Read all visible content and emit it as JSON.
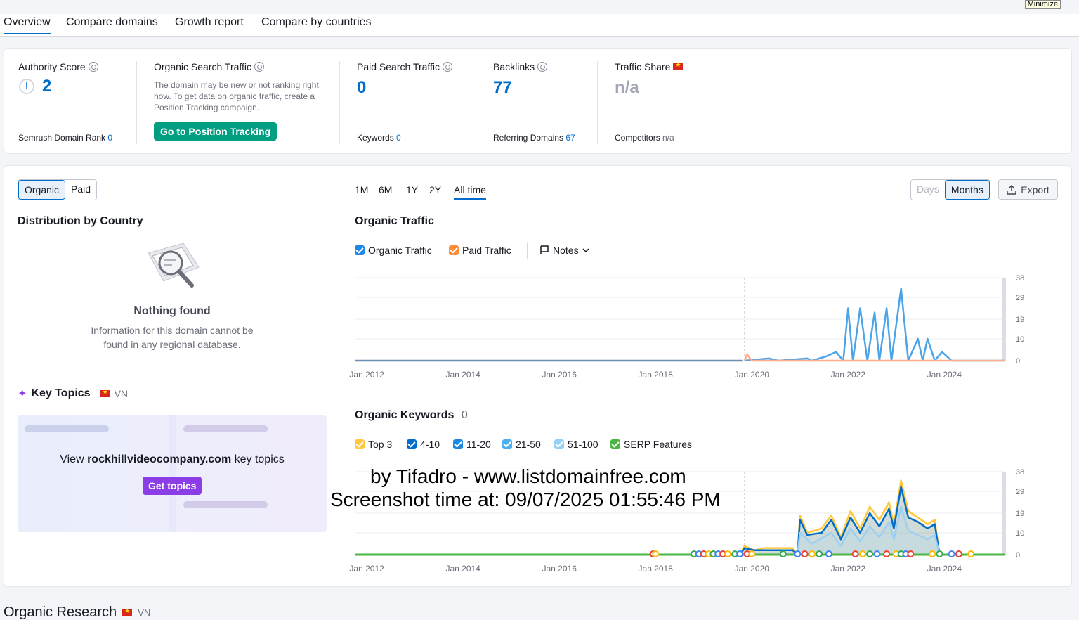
{
  "window": {
    "minimize_label": "Minimize"
  },
  "tabs": [
    {
      "label": "Overview",
      "active": true
    },
    {
      "label": "Compare domains"
    },
    {
      "label": "Growth report"
    },
    {
      "label": "Compare by countries"
    }
  ],
  "metrics": {
    "authority": {
      "title": "Authority Score",
      "value": "2",
      "sub_label": "Semrush Domain Rank",
      "sub_value": "0"
    },
    "organic": {
      "title": "Organic Search Traffic",
      "note": "The domain may be new or not ranking right now. To get data on organic traffic, create a Position Tracking campaign.",
      "button": "Go to Position Tracking"
    },
    "paid": {
      "title": "Paid Search Traffic",
      "value": "0",
      "sub_label": "Keywords",
      "sub_value": "0"
    },
    "backlinks": {
      "title": "Backlinks",
      "value": "77",
      "sub_label": "Referring Domains",
      "sub_value": "67"
    },
    "share": {
      "title": "Traffic Share",
      "value": "n/a",
      "sub_label": "Competitors",
      "sub_value": "n/a"
    }
  },
  "left_panel": {
    "toggle": [
      "Organic",
      "Paid"
    ],
    "distribution_title": "Distribution by Country",
    "nothing_found": "Nothing found",
    "nothing_text_1": "Information for this domain cannot be",
    "nothing_text_2": "found in any regional database.",
    "key_topics_title": "Key Topics",
    "key_topics_country": "VN",
    "view_prefix": "View ",
    "view_domain": "rockhillvideocompany.com",
    "view_suffix": " key topics",
    "get_topics": "Get topics"
  },
  "periods": [
    "1M",
    "6M",
    "1Y",
    "2Y",
    "All time"
  ],
  "granularity": [
    "Days",
    "Months"
  ],
  "export_label": "Export",
  "traffic_chart": {
    "title": "Organic Traffic",
    "legend": [
      {
        "label": "Organic Traffic",
        "color": "#1e88e5"
      },
      {
        "label": "Paid Traffic",
        "color": "#ff8c38"
      }
    ],
    "notes_label": "Notes"
  },
  "keywords_chart": {
    "title": "Organic Keywords",
    "count": "0",
    "legend": [
      {
        "label": "Top 3",
        "color": "#ffc83d"
      },
      {
        "label": "4-10",
        "color": "#006dca"
      },
      {
        "label": "11-20",
        "color": "#1e88e5"
      },
      {
        "label": "21-50",
        "color": "#4cb0f0"
      },
      {
        "label": "51-100",
        "color": "#9bd0f5"
      },
      {
        "label": "SERP Features",
        "color": "#4bb543"
      }
    ]
  },
  "chart_data": [
    {
      "type": "line",
      "title": "Organic Traffic",
      "x_ticks": [
        "Jan 2012",
        "Jan 2014",
        "Jan 2016",
        "Jan 2018",
        "Jan 2020",
        "Jan 2022",
        "Jan 2024"
      ],
      "y_ticks": [
        "38",
        "29",
        "19",
        "10",
        "0"
      ],
      "ylim": [
        0,
        38
      ],
      "series": [
        {
          "name": "Organic Traffic",
          "points": [
            [
              2019.9,
              0
            ],
            [
              2020.4,
              1
            ],
            [
              2020.6,
              0
            ],
            [
              2021.2,
              1
            ],
            [
              2021.3,
              0
            ],
            [
              2021.6,
              2
            ],
            [
              2021.8,
              4
            ],
            [
              2021.95,
              0
            ],
            [
              2022.05,
              24
            ],
            [
              2022.15,
              0
            ],
            [
              2022.3,
              24
            ],
            [
              2022.45,
              0
            ],
            [
              2022.6,
              22
            ],
            [
              2022.7,
              0
            ],
            [
              2022.85,
              24
            ],
            [
              2022.95,
              0
            ],
            [
              2023.15,
              33
            ],
            [
              2023.3,
              0
            ],
            [
              2023.5,
              10
            ],
            [
              2023.6,
              0
            ],
            [
              2023.7,
              10
            ],
            [
              2023.85,
              0
            ],
            [
              2024.0,
              4
            ],
            [
              2024.2,
              0
            ],
            [
              2025.3,
              0
            ]
          ]
        },
        {
          "name": "Paid Traffic",
          "points": [
            [
              2019.9,
              0
            ],
            [
              2019.95,
              3
            ],
            [
              2020.05,
              0
            ],
            [
              2025.3,
              0
            ]
          ]
        }
      ]
    },
    {
      "type": "area",
      "title": "Organic Keywords",
      "x_ticks": [
        "Jan 2012",
        "Jan 2014",
        "Jan 2016",
        "Jan 2018",
        "Jan 2020",
        "Jan 2022",
        "Jan 2024"
      ],
      "y_ticks": [
        "38",
        "29",
        "19",
        "10",
        "0"
      ],
      "ylim": [
        0,
        38
      ],
      "series": [
        {
          "name": "Top 3",
          "points": [
            [
              2019.8,
              0
            ],
            [
              2019.9,
              4
            ],
            [
              2020.1,
              2
            ],
            [
              2020.3,
              3
            ],
            [
              2020.9,
              3
            ],
            [
              2021.0,
              0
            ],
            [
              2021.05,
              18
            ],
            [
              2021.2,
              10
            ],
            [
              2021.5,
              12
            ],
            [
              2021.7,
              18
            ],
            [
              2021.9,
              8
            ],
            [
              2022.1,
              20
            ],
            [
              2022.3,
              12
            ],
            [
              2022.5,
              22
            ],
            [
              2022.7,
              16
            ],
            [
              2022.9,
              24
            ],
            [
              2023.0,
              14
            ],
            [
              2023.15,
              34
            ],
            [
              2023.3,
              20
            ],
            [
              2023.5,
              17
            ],
            [
              2023.7,
              14
            ],
            [
              2023.85,
              16
            ],
            [
              2023.95,
              0
            ],
            [
              2025.3,
              0
            ]
          ]
        },
        {
          "name": "4-10",
          "points": [
            [
              2019.8,
              0
            ],
            [
              2019.9,
              3
            ],
            [
              2020.1,
              2
            ],
            [
              2020.3,
              2
            ],
            [
              2020.9,
              2
            ],
            [
              2021.0,
              0
            ],
            [
              2021.05,
              16
            ],
            [
              2021.2,
              9
            ],
            [
              2021.5,
              10
            ],
            [
              2021.7,
              16
            ],
            [
              2021.9,
              7
            ],
            [
              2022.1,
              17
            ],
            [
              2022.3,
              10
            ],
            [
              2022.5,
              19
            ],
            [
              2022.7,
              13
            ],
            [
              2022.9,
              21
            ],
            [
              2023.0,
              12
            ],
            [
              2023.15,
              31
            ],
            [
              2023.3,
              17
            ],
            [
              2023.5,
              15
            ],
            [
              2023.7,
              12
            ],
            [
              2023.85,
              14
            ],
            [
              2023.95,
              0
            ],
            [
              2025.3,
              0
            ]
          ]
        },
        {
          "name": "21-50",
          "points": [
            [
              2019.8,
              0
            ],
            [
              2021.0,
              0
            ],
            [
              2021.05,
              10
            ],
            [
              2021.3,
              5
            ],
            [
              2021.7,
              10
            ],
            [
              2021.9,
              4
            ],
            [
              2022.1,
              12
            ],
            [
              2022.3,
              6
            ],
            [
              2022.5,
              13
            ],
            [
              2022.7,
              8
            ],
            [
              2022.9,
              15
            ],
            [
              2023.0,
              7
            ],
            [
              2023.15,
              22
            ],
            [
              2023.3,
              11
            ],
            [
              2023.5,
              9
            ],
            [
              2023.7,
              7
            ],
            [
              2023.85,
              9
            ],
            [
              2023.95,
              0
            ],
            [
              2025.3,
              0
            ]
          ]
        },
        {
          "name": "SERP Features",
          "points": [
            [
              2011.8,
              0
            ],
            [
              2025.3,
              0
            ]
          ]
        }
      ]
    }
  ],
  "organic_research": {
    "title": "Organic Research",
    "country": "VN"
  },
  "watermark": {
    "line1": "by Tifadro - www.listdomainfree.com",
    "line2": "Screenshot time at: 09/07/2025 01:55:46 PM"
  }
}
